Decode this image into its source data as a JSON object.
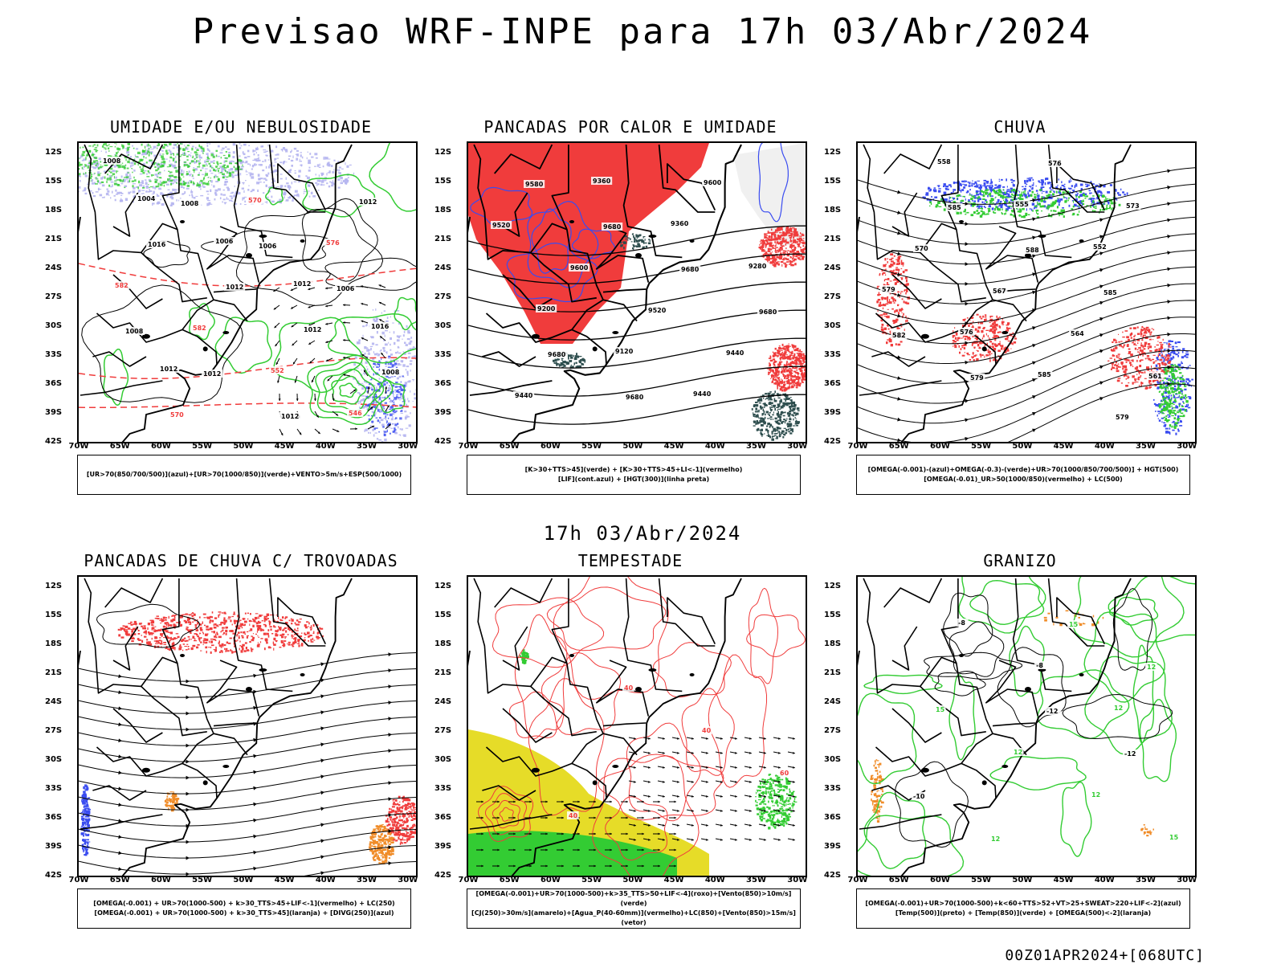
{
  "header": {
    "title": "Previsao WRF-INPE  para 17h 03/Abr/2024"
  },
  "middle": {
    "title": "17h 03/Abr/2024"
  },
  "footer": {
    "run": "00Z01APR2024+[068UTC]"
  },
  "axes": {
    "lat_labels": [
      "12S",
      "15S",
      "18S",
      "21S",
      "24S",
      "27S",
      "30S",
      "33S",
      "36S",
      "39S",
      "42S"
    ],
    "lon_labels": [
      "70W",
      "65W",
      "60W",
      "55W",
      "50W",
      "45W",
      "40W",
      "35W",
      "30W"
    ]
  },
  "colors": {
    "red": "#f03c3c",
    "green": "#33cc33",
    "blue": "#3a4cf0",
    "lavender": "#b4b4f0",
    "yellow": "#e6dc28",
    "orange": "#f08c28",
    "darkteal": "#2f4f4f",
    "black": "#000000"
  },
  "panels": [
    {
      "title": "UMIDADE E/OU NEBULOSIDADE",
      "legend": [
        "[UR>70(850/700/500)](azul)+[UR>70(1000/850)](verde)+VENTO>5m/s+ESP(500/1000)"
      ],
      "labels": [
        "1008",
        "1008",
        "1006",
        "1006",
        "1008",
        "1012",
        "1012",
        "1012",
        "1016",
        "1012",
        "1012",
        "1008",
        "570",
        "570",
        "576",
        "582",
        "582",
        "552",
        "546",
        "1004",
        "1006",
        "1012",
        "1016",
        "1012"
      ]
    },
    {
      "title": "PANCADAS POR CALOR E UMIDADE",
      "legend": [
        "[K>30+TTS>45](verde) + [K>30+TTS>45+LI<-1](vermelho)",
        "[LIF](cont.azul) + [HGT(300)](linha preta)"
      ],
      "labels": [
        "9580",
        "9680",
        "9680",
        "9680",
        "9680",
        "9680",
        "9600",
        "9520",
        "9600",
        "9520",
        "9440",
        "9440",
        "9360",
        "9360",
        "9280",
        "9200",
        "9120",
        "9440"
      ]
    },
    {
      "title": "CHUVA",
      "legend": [
        "[OMEGA(-0.001)-(azul)+OMEGA(-0.3)-(verde)+UR>70(1000/850/700/500)] + HGT(500)",
        "[OMEGA(-0.01)_UR>50(1000/850)(vermelho) + LC(500)"
      ],
      "labels": [
        "585",
        "588",
        "585",
        "582",
        "579",
        "576",
        "573",
        "570",
        "567",
        "564",
        "561",
        "558",
        "555",
        "552",
        "579",
        "576",
        "585",
        "579"
      ]
    },
    {
      "title": "PANCADAS DE CHUVA C/ TROVOADAS",
      "legend": [
        "[OMEGA(-0.001) + UR>70(1000-500) + k>30_TTS>45+LIF<-1](vermelho) + LC(250)",
        "[OMEGA(-0.001) + UR>70(1000-500) + k>30_TTS>45](laranja) + [DIVG(250)](azul)"
      ],
      "labels": []
    },
    {
      "title": "TEMPESTADE",
      "legend": [
        "[OMEGA(-0.001)+UR>70(1000-500)+k>35_TTS>50+LIF<-4](roxo)+[Vento(850)>10m/s](verde)",
        "[CJ(250)>30m/s](amarelo)+[Agua_P(40-60mm)](vermelho)+LC(850)+[Vento(850)>15m/s](vetor)"
      ],
      "labels": [
        "40",
        "40",
        "60",
        "40"
      ]
    },
    {
      "title": "GRANIZO",
      "legend": [
        "[OMEGA(-0.001)+UR>70(1000-500)+k<60+TTS>52+VT>25+SWEAT>220+LIF<-2](azul)",
        "[Temp(500)](preto) + [Temp(850)](verde) + [OMEGA(500)<-2](laranja)"
      ],
      "labels": [
        "-12",
        "-12",
        "-10",
        "12",
        "15",
        "12",
        "15",
        "12",
        "12",
        "15",
        "-8",
        "-8",
        "12"
      ]
    }
  ]
}
